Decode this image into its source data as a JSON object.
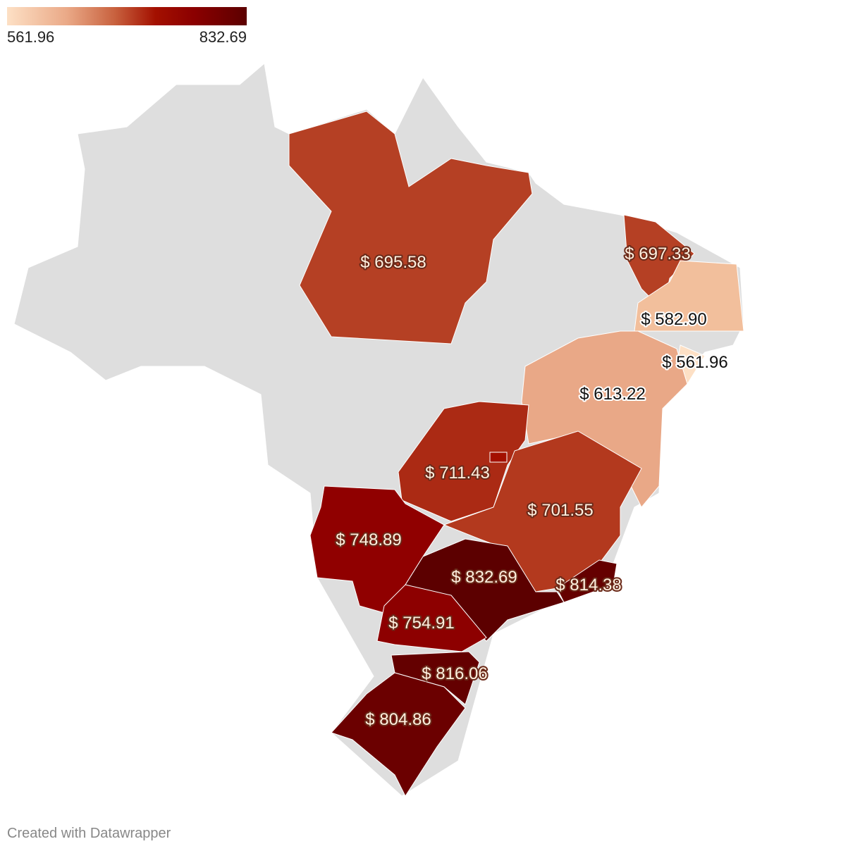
{
  "legend": {
    "min": "561.96",
    "max": "832.69",
    "colors": [
      "#fde0c5",
      "#eaa987",
      "#c8613e",
      "#a31000",
      "#8b0000",
      "#5c0000"
    ]
  },
  "no_data_color": "#dedede",
  "regions": [
    {
      "name": "Pará",
      "label": "$ 695.58",
      "value": 695.58,
      "color": "#b54024"
    },
    {
      "name": "Ceará",
      "label": "$ 697.33",
      "value": 697.33,
      "color": "#b54024"
    },
    {
      "name": "Pernambuco",
      "label": "$ 582.90",
      "value": 582.9,
      "color": "#f2bf9c"
    },
    {
      "name": "Alagoas",
      "label": "$ 561.96",
      "value": 561.96,
      "color": "#fde0c5"
    },
    {
      "name": "Bahia",
      "label": "$ 613.22",
      "value": 613.22,
      "color": "#e9a887"
    },
    {
      "name": "Goiás",
      "label": "$ 711.43",
      "value": 711.43,
      "color": "#ab2a14"
    },
    {
      "name": "Minas Gerais",
      "label": "$ 701.55",
      "value": 701.55,
      "color": "#b3391e"
    },
    {
      "name": "Rio de Janeiro",
      "label": "$ 814.38",
      "value": 814.38,
      "color": "#650000"
    },
    {
      "name": "São Paulo",
      "label": "$ 832.69",
      "value": 832.69,
      "color": "#5c0000"
    },
    {
      "name": "Mato Grosso do Sul",
      "label": "$ 748.89",
      "value": 748.89,
      "color": "#900000"
    },
    {
      "name": "Paraná",
      "label": "$ 754.91",
      "value": 754.91,
      "color": "#8d0000"
    },
    {
      "name": "Santa Catarina",
      "label": "$ 816.06",
      "value": 816.06,
      "color": "#640000"
    },
    {
      "name": "Rio Grande do Sul",
      "label": "$ 804.86",
      "value": 804.86,
      "color": "#6b0000"
    }
  ],
  "credit": "Created with Datawrapper"
}
